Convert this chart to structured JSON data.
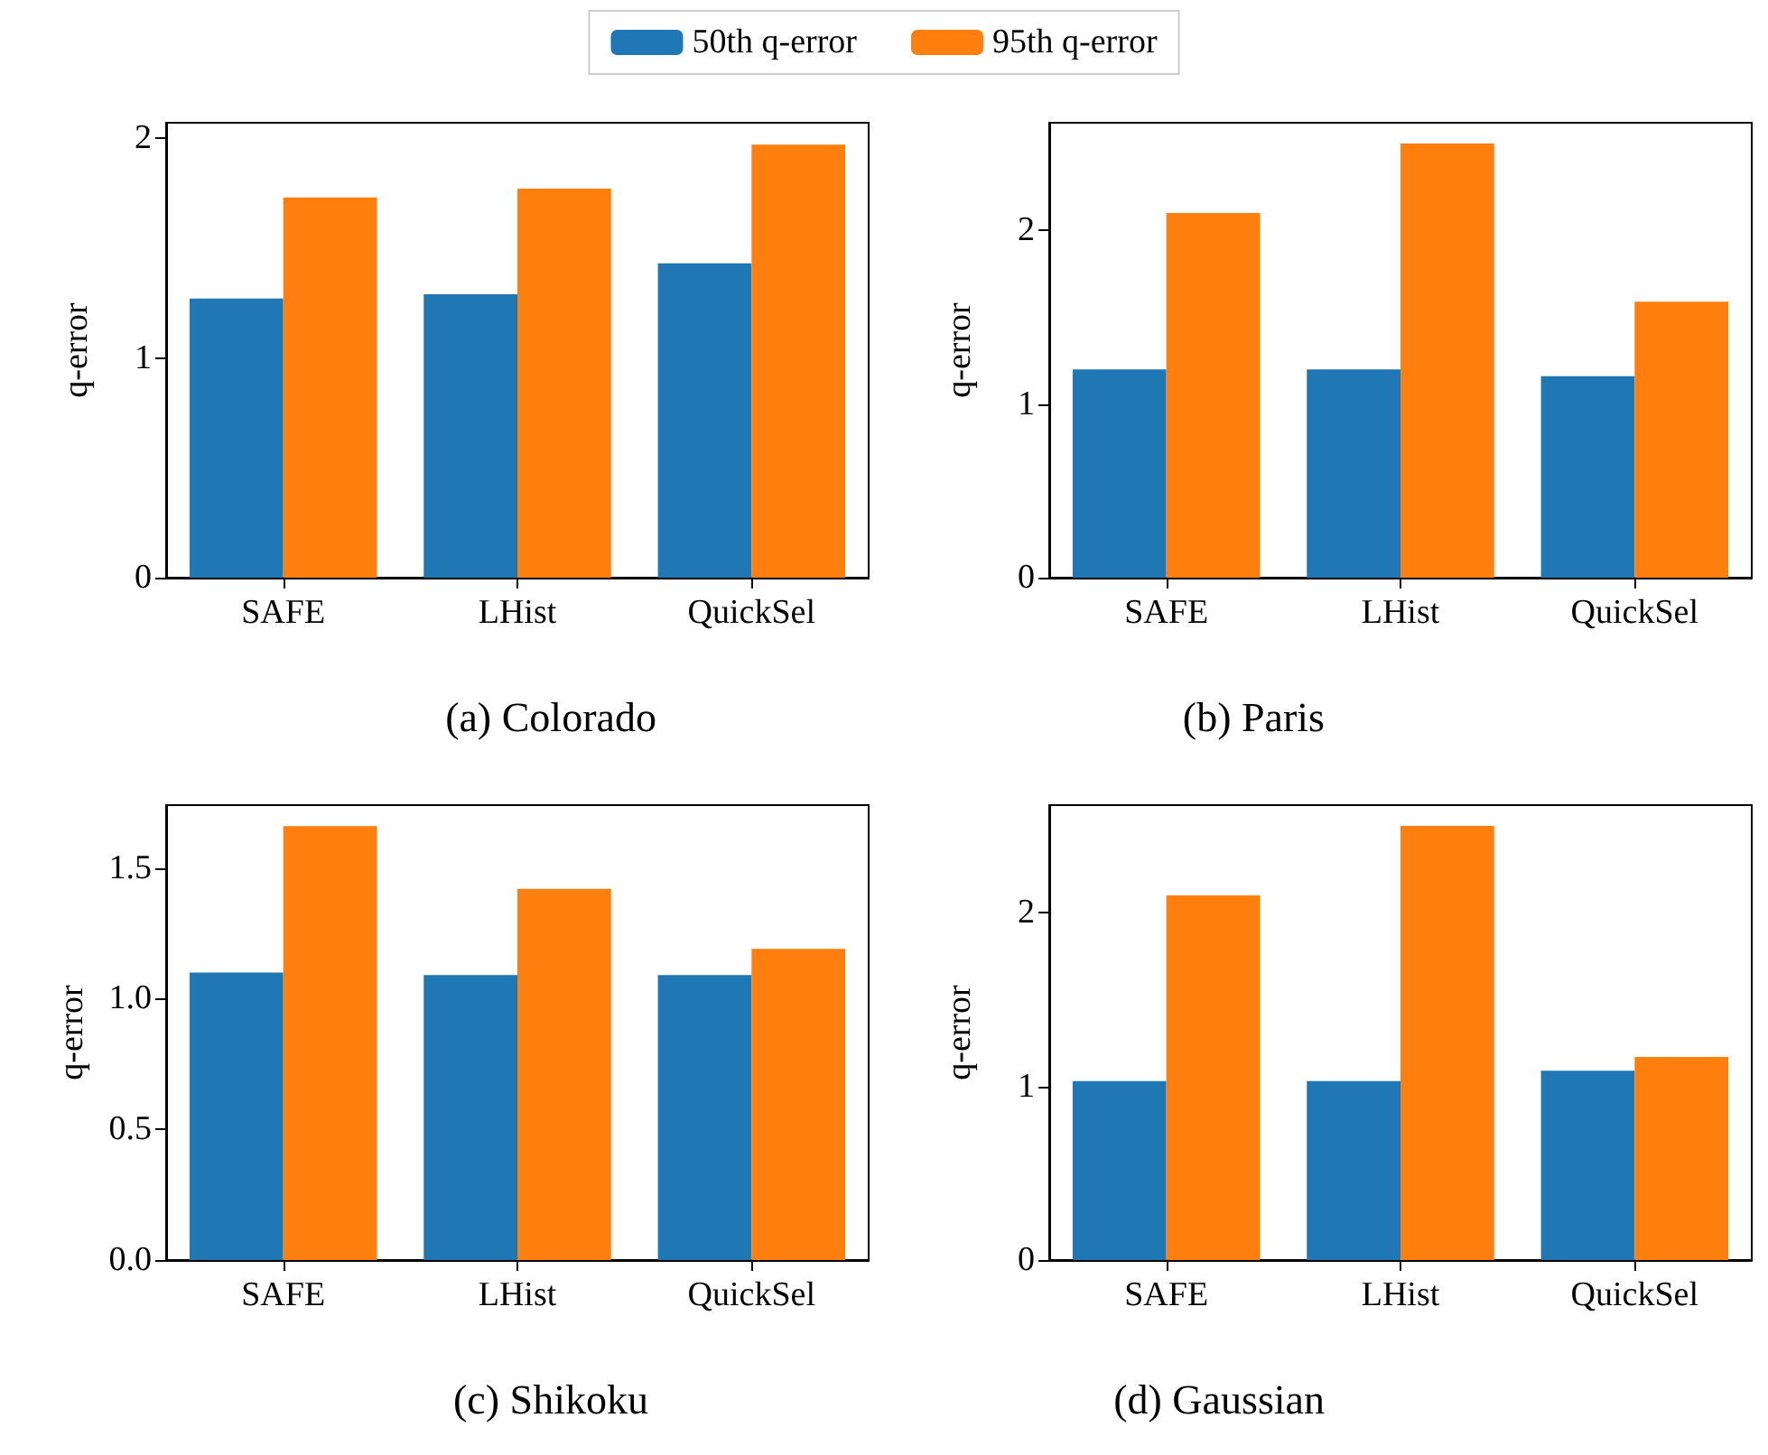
{
  "chart_data": [
    {
      "type": "bar",
      "title": "(a) Colorado",
      "ylabel": "q-error",
      "categories": [
        "SAFE",
        "LHist",
        "QuickSel"
      ],
      "legend": "top",
      "grid": false,
      "ylim": [
        0,
        2.07
      ],
      "yticks": [
        0,
        1,
        2
      ],
      "series": [
        {
          "name": "50th q-error",
          "color": "#1f77b4",
          "values": [
            1.27,
            1.29,
            1.43
          ]
        },
        {
          "name": "95th q-error",
          "color": "#ff7f0e",
          "values": [
            1.73,
            1.77,
            1.97
          ]
        }
      ]
    },
    {
      "type": "bar",
      "title": "(b) Paris",
      "ylabel": "q-error",
      "categories": [
        "SAFE",
        "LHist",
        "QuickSel"
      ],
      "grid": false,
      "ylim": [
        0,
        2.62
      ],
      "yticks": [
        0,
        1,
        2
      ],
      "series": [
        {
          "name": "50th q-error",
          "color": "#1f77b4",
          "values": [
            1.2,
            1.2,
            1.16
          ]
        },
        {
          "name": "95th q-error",
          "color": "#ff7f0e",
          "values": [
            2.1,
            2.5,
            1.59
          ]
        }
      ]
    },
    {
      "type": "bar",
      "title": "(c) Shikoku",
      "ylabel": "q-error",
      "categories": [
        "SAFE",
        "LHist",
        "QuickSel"
      ],
      "grid": false,
      "ylim": [
        0,
        1.74
      ],
      "yticks": [
        {
          "value": 0,
          "label": "0.0"
        },
        {
          "value": 0.5,
          "label": "0.5"
        },
        {
          "value": 1,
          "label": "1.0"
        },
        {
          "value": 1.5,
          "label": "1.5"
        }
      ],
      "series": [
        {
          "name": "50th q-error",
          "color": "#1f77b4",
          "values": [
            1.1,
            1.09,
            1.09
          ]
        },
        {
          "name": "95th q-error",
          "color": "#ff7f0e",
          "values": [
            1.66,
            1.42,
            1.19
          ]
        }
      ]
    },
    {
      "type": "bar",
      "title": "(d) Gaussian",
      "ylabel": "q-error",
      "categories": [
        "SAFE",
        "LHist",
        "QuickSel"
      ],
      "grid": false,
      "ylim": [
        0,
        2.62
      ],
      "yticks": [
        0,
        1,
        2
      ],
      "series": [
        {
          "name": "50th q-error",
          "color": "#1f77b4",
          "values": [
            1.03,
            1.03,
            1.09
          ]
        },
        {
          "name": "95th q-error",
          "color": "#ff7f0e",
          "values": [
            2.1,
            2.5,
            1.17
          ]
        }
      ]
    }
  ]
}
